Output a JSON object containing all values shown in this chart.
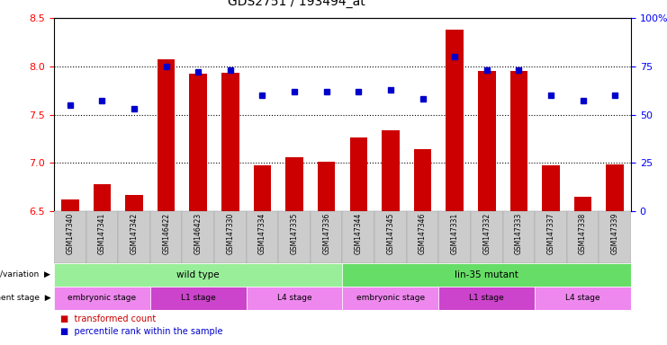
{
  "title": "GDS2751 / 193494_at",
  "samples": [
    "GSM147340",
    "GSM147341",
    "GSM147342",
    "GSM146422",
    "GSM146423",
    "GSM147330",
    "GSM147334",
    "GSM147335",
    "GSM147336",
    "GSM147344",
    "GSM147345",
    "GSM147346",
    "GSM147331",
    "GSM147332",
    "GSM147333",
    "GSM147337",
    "GSM147338",
    "GSM147339"
  ],
  "transformed_count": [
    6.62,
    6.78,
    6.67,
    8.07,
    7.92,
    7.93,
    6.97,
    7.06,
    7.01,
    7.26,
    7.34,
    7.14,
    8.38,
    7.95,
    7.95,
    6.97,
    6.65,
    6.98
  ],
  "percentile_rank": [
    55,
    57,
    53,
    75,
    72,
    73,
    60,
    62,
    62,
    62,
    63,
    58,
    80,
    73,
    73,
    60,
    57,
    60
  ],
  "ylim_left": [
    6.5,
    8.5
  ],
  "ylim_right": [
    0,
    100
  ],
  "yticks_left": [
    6.5,
    7.0,
    7.5,
    8.0,
    8.5
  ],
  "yticks_right": [
    0,
    25,
    50,
    75,
    100
  ],
  "bar_color": "#CC0000",
  "dot_color": "#0000CC",
  "genotype_groups": [
    {
      "label": "wild type",
      "start": 0,
      "end": 9,
      "color": "#99EE99"
    },
    {
      "label": "lin-35 mutant",
      "start": 9,
      "end": 18,
      "color": "#66DD66"
    }
  ],
  "dev_stage_groups": [
    {
      "label": "embryonic stage",
      "start": 0,
      "end": 3,
      "color": "#EE88EE"
    },
    {
      "label": "L1 stage",
      "start": 3,
      "end": 6,
      "color": "#CC44CC"
    },
    {
      "label": "L4 stage",
      "start": 6,
      "end": 9,
      "color": "#EE88EE"
    },
    {
      "label": "embryonic stage",
      "start": 9,
      "end": 12,
      "color": "#EE88EE"
    },
    {
      "label": "L1 stage",
      "start": 12,
      "end": 15,
      "color": "#CC44CC"
    },
    {
      "label": "L4 stage",
      "start": 15,
      "end": 18,
      "color": "#EE88EE"
    }
  ]
}
